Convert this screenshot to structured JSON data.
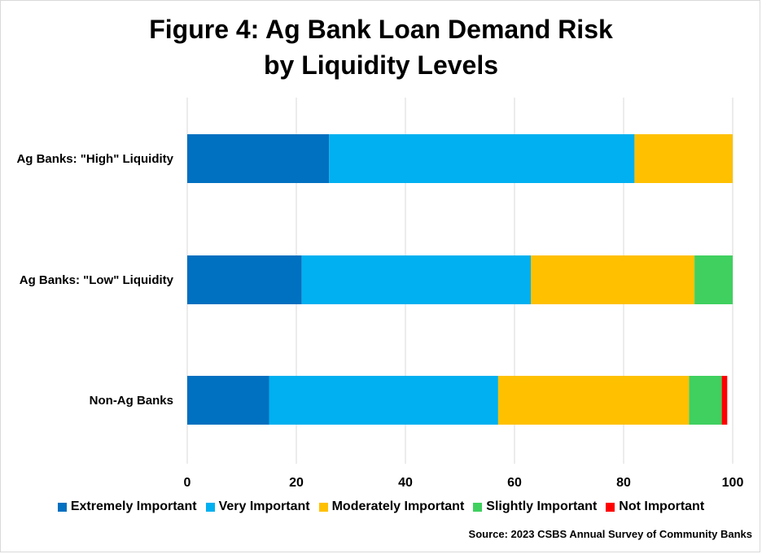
{
  "title_line1": "Figure 4: Ag Bank Loan Demand Risk",
  "title_line2": "by Liquidity Levels",
  "source": "Source: 2023 CSBS Annual Survey of Community Banks",
  "colors": {
    "Extremely Important": "#0070c0",
    "Very Important": "#00b0f0",
    "Moderately Important": "#ffc000",
    "Slightly Important": "#3fd05f",
    "Not Important": "#ff0000"
  },
  "chart_data": {
    "type": "bar",
    "orientation": "horizontal",
    "stacked": true,
    "categories": [
      "Ag Banks: \"High\" Liquidity",
      "Ag Banks: \"Low\" Liquidity",
      "Non-Ag Banks"
    ],
    "series": [
      {
        "name": "Extremely Important",
        "values": [
          26,
          21,
          15
        ]
      },
      {
        "name": "Very Important",
        "values": [
          56,
          42,
          42
        ]
      },
      {
        "name": "Moderately Important",
        "values": [
          18,
          30,
          35
        ]
      },
      {
        "name": "Slightly Important",
        "values": [
          0,
          7,
          6
        ]
      },
      {
        "name": "Not Important",
        "values": [
          0,
          0,
          1
        ]
      }
    ],
    "xlim": [
      0,
      100
    ],
    "xticks": [
      0,
      20,
      40,
      60,
      80,
      100
    ],
    "grid": true,
    "legend": "bottom"
  }
}
